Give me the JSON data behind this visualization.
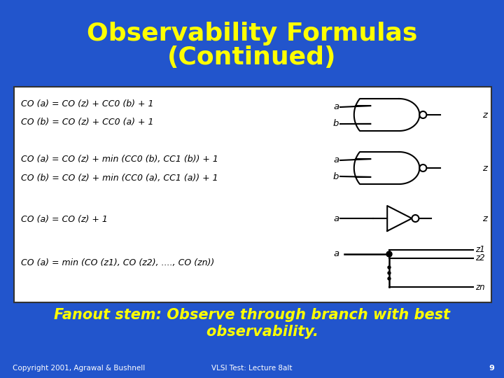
{
  "bg_color": "#2255CC",
  "title_line1": "Observability Formulas",
  "title_line2": "(Continued)",
  "title_color": "#FFFF00",
  "title_fontsize": 26,
  "box_bg": "#FFFFFF",
  "formula_lines": [
    [
      0.08,
      "CO (a) = CO (z) + CC0 (b) + 1"
    ],
    [
      0.165,
      "CO (b) = CO (z) + CC0 (a) + 1"
    ],
    [
      0.335,
      "CO (a) = CO (z) + min (CC0 (b), CC1 (b)) + 1"
    ],
    [
      0.425,
      "CO (b) = CO (z) + min (CC0 (a), CC1 (a)) + 1"
    ],
    [
      0.615,
      "CO (a) = CO (z) + 1"
    ],
    [
      0.815,
      "CO (a) = min (CO (z1), CO (z2), ...., CO (zn))"
    ]
  ],
  "footer_text": "Fanout stem: Observe through branch with best\n    observability.",
  "footer_color": "#FFFF00",
  "footer_fontsize": 15,
  "copyright_text": "Copyright 2001, Agrawal & Bushnell",
  "center_text": "VLSI Test: Lecture 8alt",
  "page_num": "9",
  "bottom_color": "#FFFFFF"
}
